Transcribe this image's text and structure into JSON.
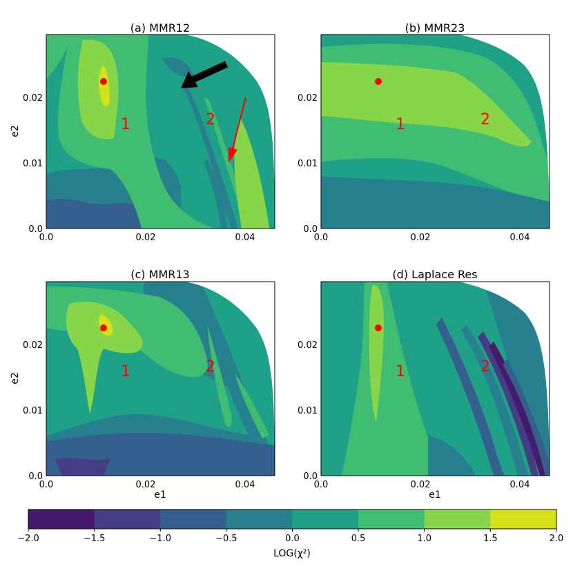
{
  "chart_data": [
    {
      "type": "heatmap",
      "title": "(a) MMR12",
      "xlabel": "",
      "ylabel": "e2",
      "xlim": [
        0,
        0.046
      ],
      "ylim": [
        0,
        0.0295
      ],
      "x_ticks": [
        "0.0",
        "0.02",
        "0.04"
      ],
      "y_ticks": [
        "0.0",
        "0.01",
        "0.02"
      ],
      "best_fit_point": {
        "x": 0.0117,
        "y": 0.0225
      },
      "region_labels": [
        {
          "text": "1",
          "x": 0.016,
          "y": 0.0162
        },
        {
          "text": "2",
          "x": 0.0332,
          "y": 0.0168
        }
      ],
      "arrows": [
        {
          "color": "#000000",
          "from": [
            0.0365,
            0.0253
          ],
          "to": [
            0.0272,
            0.0215
          ]
        },
        {
          "color": "#ff0000",
          "from": [
            0.0402,
            0.0203
          ],
          "to": [
            0.0367,
            0.0101
          ]
        }
      ]
    },
    {
      "type": "heatmap",
      "title": "(b) MMR23",
      "xlabel": "",
      "ylabel": "",
      "xlim": [
        0,
        0.046
      ],
      "ylim": [
        0,
        0.0295
      ],
      "x_ticks": [
        "0.0",
        "0.02",
        "0.04"
      ],
      "y_ticks": [
        "0.0",
        "0.01",
        "0.02"
      ],
      "best_fit_point": {
        "x": 0.0117,
        "y": 0.0225
      },
      "region_labels": [
        {
          "text": "1",
          "x": 0.016,
          "y": 0.0158
        },
        {
          "text": "2",
          "x": 0.0332,
          "y": 0.0168
        }
      ]
    },
    {
      "type": "heatmap",
      "title": "(c) MMR13",
      "xlabel": "e1",
      "ylabel": "e2",
      "xlim": [
        0,
        0.046
      ],
      "ylim": [
        0,
        0.0295
      ],
      "x_ticks": [
        "0.0",
        "0.02",
        "0.04"
      ],
      "y_ticks": [
        "0.0",
        "0.01",
        "0.02"
      ],
      "best_fit_point": {
        "x": 0.0117,
        "y": 0.0225
      },
      "region_labels": [
        {
          "text": "1",
          "x": 0.016,
          "y": 0.0158
        },
        {
          "text": "2",
          "x": 0.0332,
          "y": 0.0168
        }
      ]
    },
    {
      "type": "heatmap",
      "title": "(d) Laplace Res",
      "xlabel": "e1",
      "ylabel": "",
      "xlim": [
        0,
        0.046
      ],
      "ylim": [
        0,
        0.0295
      ],
      "x_ticks": [
        "0.0",
        "0.02",
        "0.04"
      ],
      "y_ticks": [
        "0.0",
        "0.01",
        "0.02"
      ],
      "best_fit_point": {
        "x": 0.0117,
        "y": 0.0225
      },
      "region_labels": [
        {
          "text": "1",
          "x": 0.016,
          "y": 0.0158
        },
        {
          "text": "2",
          "x": 0.0332,
          "y": 0.0168
        }
      ]
    }
  ],
  "colorbar": {
    "label": "LOG(χ²)",
    "range": [
      -2.0,
      2.0
    ],
    "bins": [
      {
        "from": -2.0,
        "to": -1.5,
        "color": "#461a6b"
      },
      {
        "from": -1.5,
        "to": -1.0,
        "color": "#453e86"
      },
      {
        "from": -1.0,
        "to": -0.5,
        "color": "#355f8d"
      },
      {
        "from": -0.5,
        "to": 0.0,
        "color": "#27808e"
      },
      {
        "from": 0.0,
        "to": 0.5,
        "color": "#1fa187"
      },
      {
        "from": 0.5,
        "to": 1.0,
        "color": "#40bd72"
      },
      {
        "from": 1.0,
        "to": 1.5,
        "color": "#87d549"
      },
      {
        "from": 1.5,
        "to": 2.0,
        "color": "#d5e21a"
      }
    ],
    "tick_labels": [
      "−2.0",
      "−1.5",
      "−1.0",
      "−0.5",
      "0.0",
      "0.5",
      "1.0",
      "1.5",
      "2.0"
    ]
  },
  "colors": {
    "marker": "#ff0000",
    "label": "#ff0000",
    "outside": "#ffffff"
  }
}
